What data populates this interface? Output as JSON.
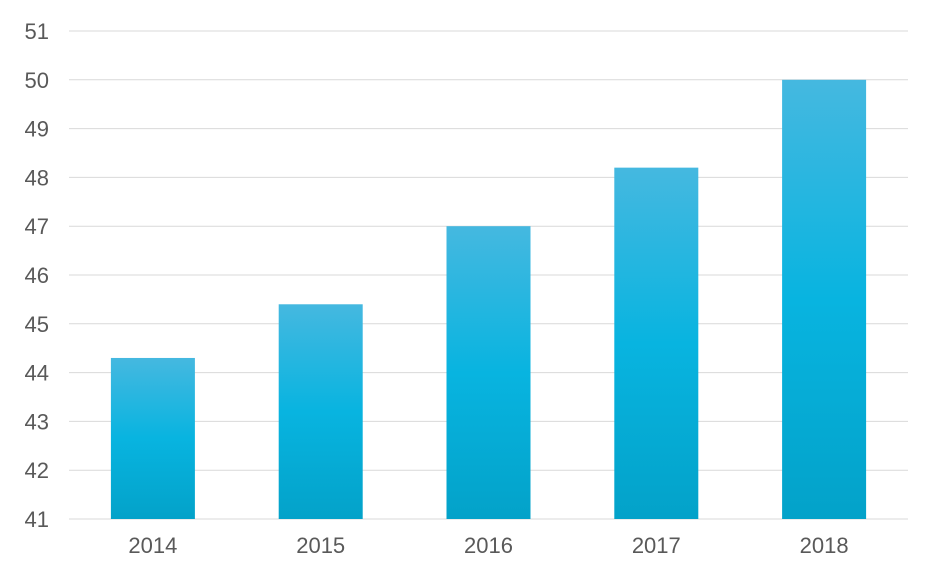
{
  "chart_data": {
    "type": "bar",
    "categories": [
      "2014",
      "2015",
      "2016",
      "2017",
      "2018"
    ],
    "values": [
      44.3,
      45.4,
      47.0,
      48.2,
      50.0
    ],
    "ylim": [
      41,
      51
    ],
    "yticks": [
      "41",
      "42",
      "43",
      "44",
      "45",
      "46",
      "47",
      "48",
      "49",
      "50",
      "51"
    ],
    "grid": true,
    "legend": "none",
    "bar_color_top": "#45b8e0",
    "bar_color_mid": "#08b4e0",
    "bar_color_bottom": "#03a2c9"
  }
}
